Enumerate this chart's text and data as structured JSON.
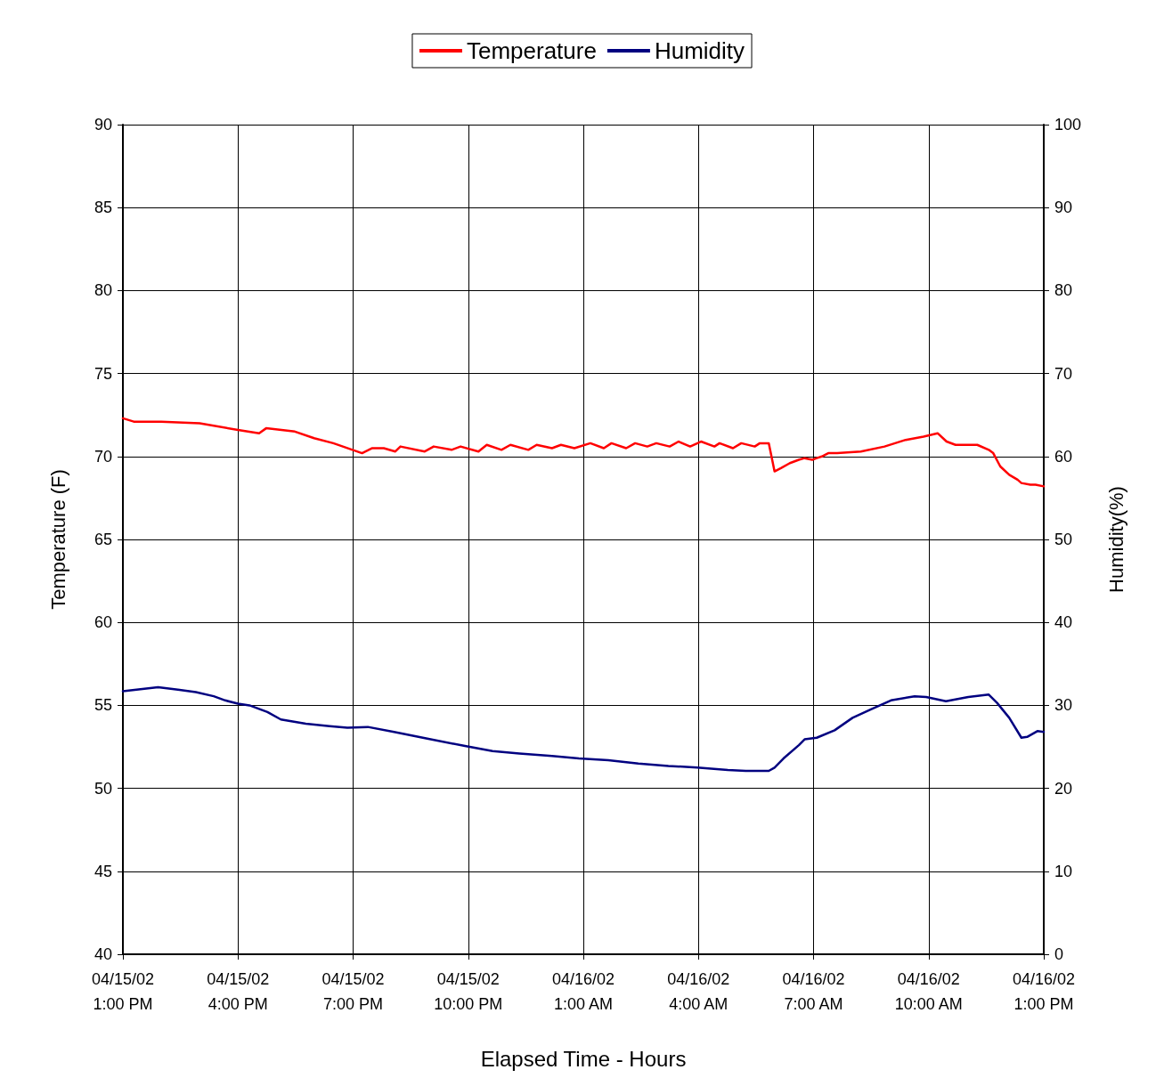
{
  "chart_data": {
    "type": "line",
    "xlabel": "Elapsed Time - Hours",
    "ylabel": "Temperature (F)",
    "y2label": "Humidity(%)",
    "xlim": [
      "--04-15T13:00",
      "--04-16T13:00"
    ],
    "xticks": [
      {
        "value": "--04-15T13:00",
        "label": "04/15/02\n1:00 PM"
      },
      {
        "value": "--04-15T16:00",
        "label": "04/15/02\n4:00 PM"
      },
      {
        "value": "--04-15T19:00",
        "label": "04/15/02\n7:00 PM"
      },
      {
        "value": "--04-15T22:00",
        "label": "04/15/02\n10:00 PM"
      },
      {
        "value": "--04-16T01:00",
        "label": "04/16/02\n1:00 AM"
      },
      {
        "value": "--04-16T04:00",
        "label": "04/16/02\n4:00 AM"
      },
      {
        "value": "--04-16T07:00",
        "label": "04/16/02\n7:00 AM"
      },
      {
        "value": "--04-16T10:00",
        "label": "04/16/02\n10:00 AM"
      },
      {
        "value": "--04-16T13:00",
        "label": "04/16/02\n1:00 PM"
      }
    ],
    "ylim": [
      40,
      90
    ],
    "yticks": [
      40,
      45,
      50,
      55,
      60,
      65,
      70,
      75,
      80,
      85,
      90
    ],
    "y2lim": [
      0,
      100
    ],
    "y2ticks": [
      0,
      10,
      20,
      30,
      40,
      50,
      60,
      70,
      80,
      90,
      100
    ],
    "grid": true,
    "legend": "top",
    "marker": "none",
    "line_style": "solid",
    "series": [
      {
        "name": "Temperature",
        "color": "#ff0000",
        "x": [
          "--04-15T13:00",
          "--04-15T13:17",
          "--04-15T14:00",
          "--04-15T15:00",
          "--04-15T16:00",
          "--04-15T16:33",
          "--04-15T16:44",
          "--04-15T17:29",
          "--04-15T17:59",
          "--04-15T18:29",
          "--04-15T18:59",
          "--04-15T19:14",
          "--04-15T19:30",
          "--04-15T19:48",
          "--04-15T20:06",
          "--04-15T20:14",
          "--04-15T20:52",
          "--04-15T21:06",
          "--04-15T21:34",
          "--04-15T21:48",
          "--04-15T22:16",
          "--04-15T22:29",
          "--04-15T22:52",
          "--04-15T23:06",
          "--04-15T23:34",
          "--04-15T23:47",
          "--04-16T00:11",
          "--04-16T00:25",
          "--04-16T00:46",
          "--04-16T01:11",
          "--04-16T01:32",
          "--04-16T01:44",
          "--04-16T02:07",
          "--04-16T02:21",
          "--04-16T02:40",
          "--04-16T02:54",
          "--04-16T03:15",
          "--04-16T03:29",
          "--04-16T03:47",
          "--04-16T04:04",
          "--04-16T04:25",
          "--04-16T04:33",
          "--04-16T04:54",
          "--04-16T05:07",
          "--04-16T05:28",
          "--04-16T05:36",
          "--04-16T05:50",
          "--04-16T05:59",
          "--04-16T06:09",
          "--04-16T06:23",
          "--04-16T06:37",
          "--04-16T06:46",
          "--04-16T06:58",
          "--04-16T07:05",
          "--04-16T07:13",
          "--04-16T07:23",
          "--04-16T07:37",
          "--04-16T08:14",
          "--04-16T08:51",
          "--04-16T09:24",
          "--04-16T09:52",
          "--04-16T10:14",
          "--04-16T10:28",
          "--04-16T10:42",
          "--04-16T10:56",
          "--04-16T11:16",
          "--04-16T11:34",
          "--04-16T11:41",
          "--04-16T11:52",
          "--04-16T12:06",
          "--04-16T12:19",
          "--04-16T12:25",
          "--04-16T12:39",
          "--04-16T12:47",
          "--04-16T13:00"
        ],
        "values": [
          72.3,
          72.1,
          72.1,
          72.0,
          71.6,
          71.4,
          71.7,
          71.5,
          71.1,
          70.8,
          70.4,
          70.2,
          70.5,
          70.5,
          70.3,
          70.6,
          70.3,
          70.6,
          70.4,
          70.6,
          70.3,
          70.7,
          70.4,
          70.7,
          70.4,
          70.7,
          70.5,
          70.7,
          70.5,
          70.8,
          70.5,
          70.8,
          70.5,
          70.8,
          70.6,
          70.8,
          70.6,
          70.9,
          70.6,
          70.9,
          70.6,
          70.8,
          70.5,
          70.8,
          70.6,
          70.8,
          70.8,
          69.1,
          69.3,
          69.6,
          69.8,
          69.9,
          69.8,
          69.9,
          70.0,
          70.2,
          70.2,
          70.3,
          70.6,
          71.0,
          71.2,
          71.4,
          70.9,
          70.7,
          70.7,
          70.7,
          70.4,
          70.2,
          69.4,
          68.9,
          68.6,
          68.4,
          68.3,
          68.3,
          68.2
        ]
      },
      {
        "name": "Humidity",
        "color": "#000080",
        "axis": "y2",
        "x": [
          "--04-15T13:00",
          "--04-15T13:55",
          "--04-15T14:26",
          "--04-15T14:54",
          "--04-15T15:22",
          "--04-15T15:40",
          "--04-15T16:00",
          "--04-15T16:18",
          "--04-15T16:46",
          "--04-15T17:07",
          "--04-15T17:46",
          "--04-15T18:23",
          "--04-15T18:51",
          "--04-15T19:23",
          "--04-15T20:04",
          "--04-15T20:56",
          "--04-15T21:55",
          "--04-15T22:38",
          "--04-15T23:20",
          "--04-16T00:11",
          "--04-16T00:53",
          "--04-16T01:39",
          "--04-16T02:26",
          "--04-16T03:13",
          "--04-16T03:58",
          "--04-16T04:46",
          "--04-16T05:14",
          "--04-16T05:50",
          "--04-16T05:59",
          "--04-16T06:13",
          "--04-16T06:37",
          "--04-16T06:46",
          "--04-16T07:05",
          "--04-16T07:33",
          "--04-16T08:01",
          "--04-16T08:29",
          "--04-16T09:01",
          "--04-16T09:38",
          "--04-16T09:56",
          "--04-16T10:27",
          "--04-16T11:02",
          "--04-16T11:34",
          "--04-16T11:47",
          "--04-16T12:06",
          "--04-16T12:25",
          "--04-16T12:34",
          "--04-16T12:50",
          "--04-16T13:00"
        ],
        "values": [
          31.7,
          32.2,
          31.9,
          31.6,
          31.1,
          30.6,
          30.2,
          30.0,
          29.2,
          28.3,
          27.8,
          27.5,
          27.3,
          27.4,
          26.8,
          26.0,
          25.1,
          24.5,
          24.2,
          23.9,
          23.6,
          23.4,
          23.0,
          22.7,
          22.5,
          22.2,
          22.1,
          22.1,
          22.5,
          23.6,
          25.2,
          25.9,
          26.1,
          27.0,
          28.5,
          29.5,
          30.6,
          31.1,
          31.0,
          30.5,
          31.0,
          31.3,
          30.3,
          28.5,
          26.1,
          26.2,
          26.9,
          26.8
        ]
      }
    ]
  }
}
